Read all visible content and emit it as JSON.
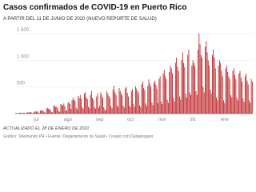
{
  "chart_data": {
    "type": "bar",
    "title": "Casos confirmados de COVID-19 en Puerto Rico",
    "subtitle": "A PARTIR DEL 11 DE JUNIO DE 2020 (NUEVO REPORTE DE SALUD)",
    "note": "ACTUALIZADO EL 28 DE ENERO DE 2021",
    "source": "Gráfico: Telemundo PR • Fuente: Departamento de Salud • Creado con Datawrapper",
    "color": "#c0282d",
    "grid": true,
    "ylim": [
      0,
      1500
    ],
    "yticks": [
      {
        "value": 500,
        "label": "500"
      },
      {
        "value": 1000,
        "label": "1 000"
      },
      {
        "value": 1500,
        "label": "1 500"
      }
    ],
    "categories": [
      null,
      null,
      null,
      null,
      null,
      null,
      null,
      null,
      null,
      null,
      null,
      null,
      null,
      null,
      null,
      null,
      null,
      null,
      null,
      null,
      "jul",
      null,
      null,
      null,
      null,
      null,
      null,
      null,
      null,
      null,
      null,
      null,
      null,
      null,
      null,
      null,
      null,
      null,
      null,
      null,
      null,
      null,
      null,
      null,
      null,
      null,
      null,
      null,
      null,
      null,
      null,
      "ago",
      null,
      null,
      null,
      null,
      null,
      null,
      null,
      null,
      null,
      null,
      null,
      null,
      null,
      null,
      null,
      null,
      null,
      null,
      null,
      null,
      null,
      null,
      null,
      null,
      null,
      null,
      null,
      null,
      null,
      null,
      "sep",
      null,
      null,
      null,
      null,
      null,
      null,
      null,
      null,
      null,
      null,
      null,
      null,
      null,
      null,
      null,
      null,
      null,
      null,
      null,
      null,
      null,
      null,
      null,
      null,
      null,
      null,
      null,
      null,
      null,
      "oct",
      null,
      null,
      null,
      null,
      null,
      null,
      null,
      null,
      null,
      null,
      null,
      null,
      null,
      null,
      null,
      null,
      null,
      null,
      null,
      null,
      null,
      null,
      null,
      null,
      null,
      null,
      null,
      null,
      null,
      null,
      "nov",
      null,
      null,
      null,
      null,
      null,
      null,
      null,
      null,
      null,
      null,
      null,
      null,
      null,
      null,
      null,
      null,
      null,
      null,
      null,
      null,
      null,
      null,
      null,
      null,
      null,
      null,
      null,
      null,
      null,
      "dic",
      null,
      null,
      null,
      null,
      null,
      null,
      null,
      null,
      null,
      null,
      null,
      null,
      null,
      null,
      null,
      null,
      null,
      null,
      null,
      null,
      null,
      null,
      null,
      null,
      null,
      null,
      null,
      null,
      null,
      null,
      "ene",
      null,
      null,
      null,
      null,
      null,
      null,
      null,
      null,
      null,
      null,
      null,
      null,
      null,
      null,
      null,
      null,
      null,
      null,
      null,
      null,
      null,
      null,
      null,
      null,
      null,
      null,
      null
    ],
    "values": [
      8,
      12,
      5,
      3,
      20,
      15,
      10,
      14,
      18,
      6,
      4,
      22,
      25,
      18,
      30,
      28,
      9,
      7,
      35,
      40,
      38,
      45,
      20,
      12,
      60,
      55,
      70,
      48,
      25,
      18,
      90,
      110,
      85,
      95,
      70,
      30,
      22,
      140,
      160,
      120,
      130,
      100,
      45,
      35,
      180,
      170,
      150,
      190,
      140,
      60,
      50,
      200,
      220,
      180,
      90,
      250,
      300,
      260,
      240,
      110,
      80,
      330,
      290,
      350,
      280,
      120,
      90,
      380,
      400,
      310,
      270,
      130,
      100,
      350,
      420,
      300,
      260,
      120,
      90,
      320,
      380,
      110,
      150,
      400,
      350,
      300,
      120,
      80,
      60,
      420,
      380,
      330,
      290,
      140,
      100,
      450,
      520,
      400,
      350,
      160,
      120,
      480,
      430,
      380,
      340,
      150,
      110,
      470,
      500,
      390,
      320,
      150,
      120,
      420,
      460,
      180,
      130,
      510,
      470,
      420,
      380,
      160,
      120,
      550,
      600,
      480,
      440,
      190,
      140,
      520,
      640,
      560,
      500,
      210,
      160,
      580,
      620,
      540,
      470,
      200,
      650,
      700,
      230,
      180,
      750,
      820,
      700,
      650,
      260,
      200,
      780,
      900,
      850,
      760,
      300,
      230,
      950,
      1050,
      880,
      800,
      320,
      260,
      1000,
      1150,
      950,
      870,
      380,
      300,
      1100,
      1200,
      400,
      350,
      900,
      1000,
      950,
      880,
      420,
      350,
      1200,
      1500,
      1300,
      1100,
      1050,
      500,
      400,
      1250,
      1350,
      1150,
      1000,
      900,
      450,
      380,
      1100,
      1200,
      1050,
      850,
      300,
      250,
      900,
      1000,
      950,
      800,
      700,
      250,
      200,
      850,
      900,
      780,
      700,
      650,
      350,
      300,
      800,
      850,
      720,
      650,
      300,
      250,
      750,
      800,
      680,
      600,
      280,
      220,
      700,
      750,
      620,
      550,
      250,
      200,
      650,
      600
    ]
  }
}
